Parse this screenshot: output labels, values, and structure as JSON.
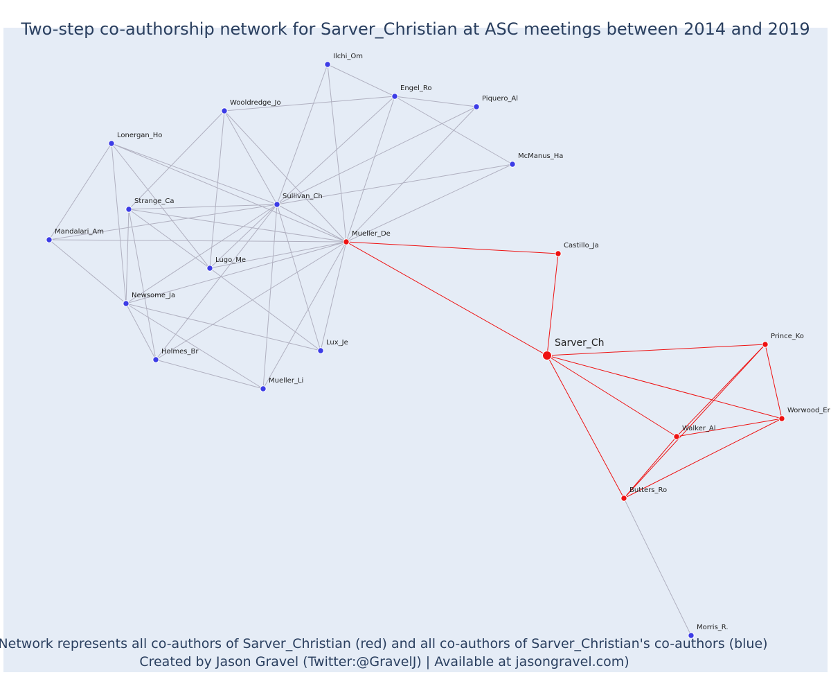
{
  "title": "Two-step co-authorship network for Sarver_Christian at ASC meetings between 2014 and 2019",
  "caption": {
    "line1": "Network represents all co-authors of Sarver_Christian (red) and all co-authors of Sarver_Christian's co-authors (blue)",
    "line2": "Created by Jason Gravel (Twitter:@GravelJ) | Available at jasongravel.com)"
  },
  "colors": {
    "background": "#e5ecf6",
    "coauthor_red": "#ee1111",
    "second_step_blue": "#3c3ce6",
    "edge_grey": "#b0b0c0",
    "edge_red": "#ee1111"
  },
  "nodes": [
    {
      "id": "Sarver_Ch",
      "label": "Sarver_Ch",
      "group": "ego"
    },
    {
      "id": "Mueller_De",
      "label": "Mueller_De",
      "group": "coauthor"
    },
    {
      "id": "Castillo_Ja",
      "label": "Castillo_Ja",
      "group": "coauthor"
    },
    {
      "id": "Prince_Ko",
      "label": "Prince_Ko",
      "group": "coauthor"
    },
    {
      "id": "Worwood_Er",
      "label": "Worwood_Er",
      "group": "coauthor"
    },
    {
      "id": "Walker_Al",
      "label": "Walker_Al",
      "group": "coauthor"
    },
    {
      "id": "Butters_Ro",
      "label": "Butters_Ro",
      "group": "coauthor"
    },
    {
      "id": "Ilchi_Om",
      "label": "Ilchi_Om",
      "group": "second"
    },
    {
      "id": "Engel_Ro",
      "label": "Engel_Ro",
      "group": "second"
    },
    {
      "id": "Piquero_Al",
      "label": "Piquero_Al",
      "group": "second"
    },
    {
      "id": "Wooldredge_Jo",
      "label": "Wooldredge_Jo",
      "group": "second"
    },
    {
      "id": "Lonergan_Ho",
      "label": "Lonergan_Ho",
      "group": "second"
    },
    {
      "id": "McManus_Ha",
      "label": "McManus_Ha",
      "group": "second"
    },
    {
      "id": "Strange_Ca",
      "label": "Strange_Ca",
      "group": "second"
    },
    {
      "id": "Sullivan_Ch",
      "label": "Sullivan_Ch",
      "group": "second"
    },
    {
      "id": "Mandalari_Am",
      "label": "Mandalari_Am",
      "group": "second"
    },
    {
      "id": "Lugo_Me",
      "label": "Lugo_Me",
      "group": "second"
    },
    {
      "id": "Newsome_Ja",
      "label": "Newsome_Ja",
      "group": "second"
    },
    {
      "id": "Lux_Je",
      "label": "Lux_Je",
      "group": "second"
    },
    {
      "id": "Holmes_Br",
      "label": "Holmes_Br",
      "group": "second"
    },
    {
      "id": "Mueller_Li",
      "label": "Mueller_Li",
      "group": "second"
    },
    {
      "id": "Morris_R",
      "label": "Morris_R.",
      "group": "second"
    }
  ],
  "edges": [
    [
      "Sarver_Ch",
      "Mueller_De",
      "red"
    ],
    [
      "Sarver_Ch",
      "Castillo_Ja",
      "red"
    ],
    [
      "Mueller_De",
      "Castillo_Ja",
      "red"
    ],
    [
      "Sarver_Ch",
      "Prince_Ko",
      "red"
    ],
    [
      "Sarver_Ch",
      "Worwood_Er",
      "red"
    ],
    [
      "Sarver_Ch",
      "Walker_Al",
      "red"
    ],
    [
      "Sarver_Ch",
      "Butters_Ro",
      "red"
    ],
    [
      "Prince_Ko",
      "Worwood_Er",
      "red"
    ],
    [
      "Prince_Ko",
      "Walker_Al",
      "red"
    ],
    [
      "Prince_Ko",
      "Butters_Ro",
      "red"
    ],
    [
      "Worwood_Er",
      "Walker_Al",
      "red"
    ],
    [
      "Worwood_Er",
      "Butters_Ro",
      "red"
    ],
    [
      "Walker_Al",
      "Butters_Ro",
      "red"
    ],
    [
      "Butters_Ro",
      "Morris_R",
      "grey"
    ],
    [
      "Ilchi_Om",
      "Engel_Ro",
      "grey"
    ],
    [
      "Ilchi_Om",
      "Mueller_De",
      "grey"
    ],
    [
      "Ilchi_Om",
      "Sullivan_Ch",
      "grey"
    ],
    [
      "Engel_Ro",
      "Piquero_Al",
      "grey"
    ],
    [
      "Engel_Ro",
      "McManus_Ha",
      "grey"
    ],
    [
      "Engel_Ro",
      "Wooldredge_Jo",
      "grey"
    ],
    [
      "Engel_Ro",
      "Mueller_De",
      "grey"
    ],
    [
      "Engel_Ro",
      "Sullivan_Ch",
      "grey"
    ],
    [
      "Piquero_Al",
      "Mueller_De",
      "grey"
    ],
    [
      "Piquero_Al",
      "Sullivan_Ch",
      "grey"
    ],
    [
      "McManus_Ha",
      "Sullivan_Ch",
      "grey"
    ],
    [
      "McManus_Ha",
      "Mueller_De",
      "grey"
    ],
    [
      "Wooldredge_Jo",
      "Sullivan_Ch",
      "grey"
    ],
    [
      "Wooldredge_Jo",
      "Mueller_De",
      "grey"
    ],
    [
      "Wooldredge_Jo",
      "Lugo_Me",
      "grey"
    ],
    [
      "Wooldredge_Jo",
      "Strange_Ca",
      "grey"
    ],
    [
      "Lonergan_Ho",
      "Sullivan_Ch",
      "grey"
    ],
    [
      "Lonergan_Ho",
      "Mueller_De",
      "grey"
    ],
    [
      "Lonergan_Ho",
      "Mandalari_Am",
      "grey"
    ],
    [
      "Lonergan_Ho",
      "Newsome_Ja",
      "grey"
    ],
    [
      "Lonergan_Ho",
      "Lugo_Me",
      "grey"
    ],
    [
      "Strange_Ca",
      "Sullivan_Ch",
      "grey"
    ],
    [
      "Strange_Ca",
      "Mueller_De",
      "grey"
    ],
    [
      "Strange_Ca",
      "Newsome_Ja",
      "grey"
    ],
    [
      "Strange_Ca",
      "Holmes_Br",
      "grey"
    ],
    [
      "Strange_Ca",
      "Lugo_Me",
      "grey"
    ],
    [
      "Mandalari_Am",
      "Sullivan_Ch",
      "grey"
    ],
    [
      "Mandalari_Am",
      "Mueller_De",
      "grey"
    ],
    [
      "Mandalari_Am",
      "Newsome_Ja",
      "grey"
    ],
    [
      "Lugo_Me",
      "Sullivan_Ch",
      "grey"
    ],
    [
      "Lugo_Me",
      "Mueller_De",
      "grey"
    ],
    [
      "Lugo_Me",
      "Lux_Je",
      "grey"
    ],
    [
      "Newsome_Ja",
      "Sullivan_Ch",
      "grey"
    ],
    [
      "Newsome_Ja",
      "Mueller_De",
      "grey"
    ],
    [
      "Newsome_Ja",
      "Lux_Je",
      "grey"
    ],
    [
      "Newsome_Ja",
      "Holmes_Br",
      "grey"
    ],
    [
      "Newsome_Ja",
      "Mueller_Li",
      "grey"
    ],
    [
      "Holmes_Br",
      "Mueller_Li",
      "grey"
    ],
    [
      "Holmes_Br",
      "Sullivan_Ch",
      "grey"
    ],
    [
      "Holmes_Br",
      "Mueller_De",
      "grey"
    ],
    [
      "Sullivan_Ch",
      "Mueller_De",
      "grey"
    ],
    [
      "Sullivan_Ch",
      "Lux_Je",
      "grey"
    ],
    [
      "Sullivan_Ch",
      "Mueller_Li",
      "grey"
    ],
    [
      "Mueller_De",
      "Lux_Je",
      "grey"
    ],
    [
      "Mueller_De",
      "Mueller_Li",
      "grey"
    ]
  ]
}
